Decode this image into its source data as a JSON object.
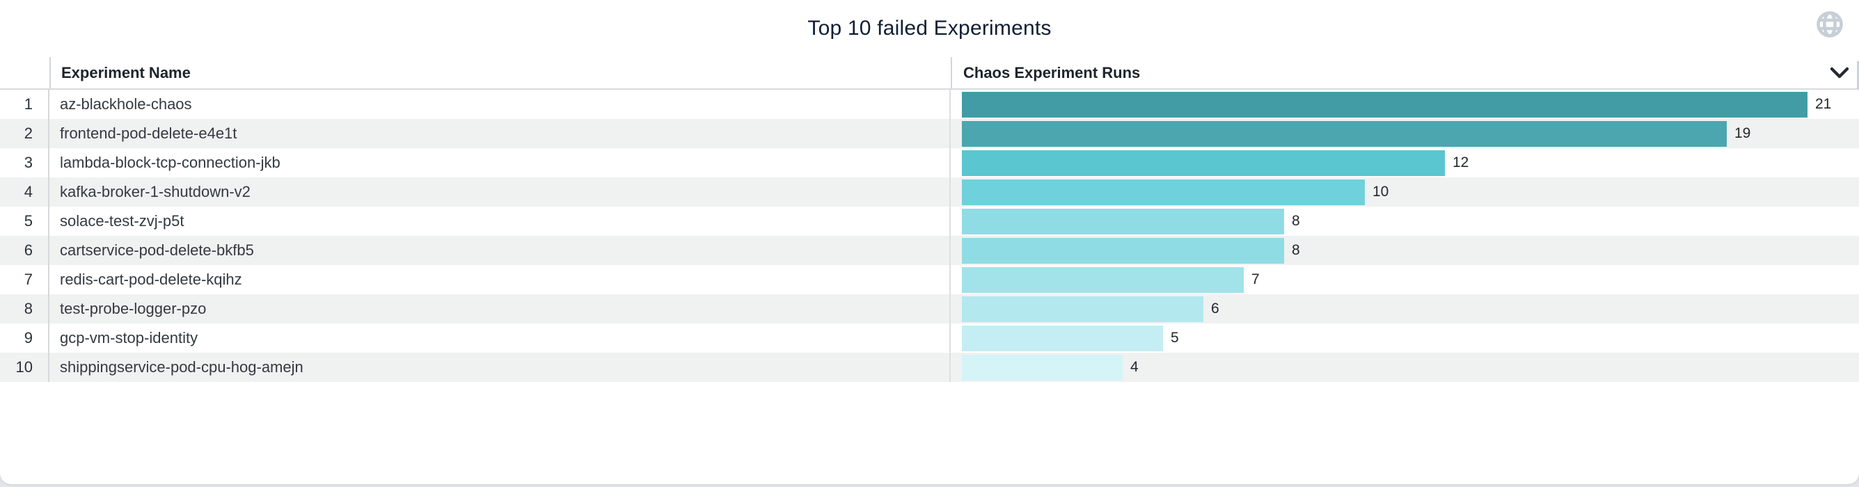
{
  "panel": {
    "title": "Top 10 failed Experiments"
  },
  "columns": {
    "name": "Experiment Name",
    "runs": "Chaos Experiment Runs"
  },
  "colors": {
    "title_text": "#111f33",
    "header_text": "#1e232b",
    "row_text": "#343a40",
    "rank_text": "#2c3138",
    "value_text": "#23272e",
    "row_alt_bg": "#f0f1f1",
    "divider": "#d3d6d9",
    "header_border": "#d8dadd",
    "globe_icon": "#c8ced6",
    "chevron_icon": "#262b33",
    "page_bg": "#e2e5e9",
    "card_bg": "#ffffff"
  },
  "chart_data": {
    "type": "bar",
    "orientation": "horizontal",
    "title": "Top 10 failed Experiments",
    "xlabel": "Chaos Experiment Runs",
    "ylabel": "Experiment Name",
    "xlim": [
      0,
      21.6
    ],
    "grid": false,
    "legend": false,
    "value_labels": true,
    "categories": [
      "az-blackhole-chaos",
      "frontend-pod-delete-e4e1t",
      "lambda-block-tcp-connection-jkb",
      "kafka-broker-1-shutdown-v2",
      "solace-test-zvj-p5t",
      "cartservice-pod-delete-bkfb5",
      "redis-cart-pod-delete-kqihz",
      "test-probe-logger-pzo",
      "gcp-vm-stop-identity",
      "shippingservice-pod-cpu-hog-amejn"
    ],
    "values": [
      21,
      19,
      12,
      10,
      8,
      8,
      7,
      6,
      5,
      4
    ],
    "rows": [
      {
        "rank": 1,
        "name": "az-blackhole-chaos",
        "runs": 21,
        "color": "#419ca6"
      },
      {
        "rank": 2,
        "name": "frontend-pod-delete-e4e1t",
        "runs": 19,
        "color": "#4ba6af"
      },
      {
        "rank": 3,
        "name": "lambda-block-tcp-connection-jkb",
        "runs": 12,
        "color": "#5ac6d0"
      },
      {
        "rank": 4,
        "name": "kafka-broker-1-shutdown-v2",
        "runs": 10,
        "color": "#6fd1db"
      },
      {
        "rank": 5,
        "name": "solace-test-zvj-p5t",
        "runs": 8,
        "color": "#8fdce5"
      },
      {
        "rank": 6,
        "name": "cartservice-pod-delete-bkfb5",
        "runs": 8,
        "color": "#8fdce5"
      },
      {
        "rank": 7,
        "name": "redis-cart-pod-delete-kqihz",
        "runs": 7,
        "color": "#a2e2e9"
      },
      {
        "rank": 8,
        "name": "test-probe-logger-pzo",
        "runs": 6,
        "color": "#b3e8ee"
      },
      {
        "rank": 9,
        "name": "gcp-vm-stop-identity",
        "runs": 5,
        "color": "#c4eef3"
      },
      {
        "rank": 10,
        "name": "shippingservice-pod-cpu-hog-amejn",
        "runs": 4,
        "color": "#d4f4f8"
      }
    ]
  }
}
